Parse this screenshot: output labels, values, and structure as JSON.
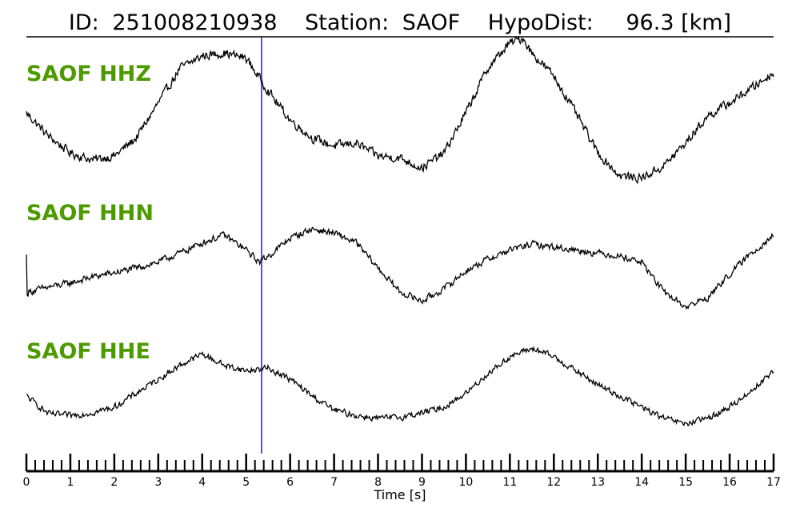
{
  "title": {
    "id_label": "ID:",
    "id_value": "251008210938",
    "station_label": "Station:",
    "station_value": "SAOF",
    "dist_label": "HypoDist:",
    "dist_value": "96.3 [km]"
  },
  "colors": {
    "label": "#4d9a00",
    "pick_line": "#1a1adc",
    "trace": "#000000"
  },
  "chart_data": {
    "type": "line",
    "xlabel": "Time [s]",
    "xlim": [
      0,
      17
    ],
    "x_tick_labels": [
      "0",
      "1",
      "2",
      "3",
      "4",
      "5",
      "6",
      "7",
      "8",
      "9",
      "10",
      "11",
      "12",
      "13",
      "14",
      "15",
      "16",
      "17"
    ],
    "minor_tick_step": 0.2,
    "pick_time": 5.35,
    "series": [
      {
        "name": "SAOF HHZ",
        "x": [
          0,
          0.5,
          1,
          1.5,
          2,
          2.5,
          3,
          3.5,
          4,
          4.5,
          5,
          5.3,
          5.7,
          6,
          6.5,
          7,
          7.5,
          8,
          8.5,
          9,
          9.5,
          10,
          10.5,
          11,
          11.3,
          11.5,
          12,
          12.5,
          13,
          13.5,
          14,
          14.5,
          15,
          15.5,
          16,
          16.5,
          17
        ],
        "y": [
          0.35,
          0.12,
          -0.05,
          -0.12,
          -0.08,
          0.1,
          0.45,
          0.8,
          0.92,
          0.95,
          0.9,
          0.7,
          0.45,
          0.28,
          0.1,
          0.02,
          0.05,
          -0.08,
          -0.1,
          -0.2,
          -0.05,
          0.35,
          0.8,
          1.05,
          1.1,
          0.95,
          0.72,
          0.35,
          -0.05,
          -0.28,
          -0.3,
          -0.18,
          0.05,
          0.32,
          0.45,
          0.6,
          0.75
        ],
        "noise": 0.04
      },
      {
        "name": "SAOF HHN",
        "x": [
          0,
          0.02,
          0.05,
          0.5,
          1,
          1.5,
          2,
          2.5,
          3,
          3.5,
          4,
          4.5,
          5,
          5.3,
          5.6,
          6,
          6.5,
          7,
          7.5,
          8,
          8.5,
          9,
          9.5,
          10,
          10.5,
          11,
          11.5,
          12,
          12.5,
          13,
          13.5,
          14,
          14.5,
          15,
          15.5,
          16,
          16.5,
          17
        ],
        "y": [
          0.4,
          -0.25,
          -0.2,
          -0.12,
          -0.05,
          0.05,
          0.12,
          0.2,
          0.3,
          0.45,
          0.62,
          0.75,
          0.5,
          0.3,
          0.45,
          0.7,
          0.85,
          0.78,
          0.62,
          0.2,
          -0.2,
          -0.35,
          -0.15,
          0.15,
          0.35,
          0.5,
          0.6,
          0.55,
          0.5,
          0.45,
          0.4,
          0.3,
          -0.2,
          -0.45,
          -0.3,
          0.1,
          0.45,
          0.75
        ],
        "noise": 0.05
      },
      {
        "name": "SAOF HHE",
        "x": [
          0,
          0.5,
          1,
          1.5,
          2,
          2.5,
          3,
          3.5,
          4,
          4.5,
          5,
          5.5,
          6,
          6.5,
          7,
          7.5,
          8,
          8.5,
          9,
          9.5,
          10,
          10.5,
          11,
          11.5,
          12,
          12.5,
          13,
          13.5,
          14,
          14.5,
          15,
          15.5,
          16,
          16.5,
          17
        ],
        "y": [
          0,
          -0.32,
          -0.35,
          -0.3,
          -0.2,
          0.05,
          0.3,
          0.55,
          0.75,
          0.55,
          0.45,
          0.5,
          0.3,
          0.0,
          -0.25,
          -0.35,
          -0.4,
          -0.38,
          -0.3,
          -0.2,
          0.05,
          0.4,
          0.7,
          0.85,
          0.7,
          0.45,
          0.2,
          0.0,
          -0.2,
          -0.4,
          -0.5,
          -0.4,
          -0.2,
          0.1,
          0.45
        ],
        "noise": 0.05
      }
    ]
  }
}
